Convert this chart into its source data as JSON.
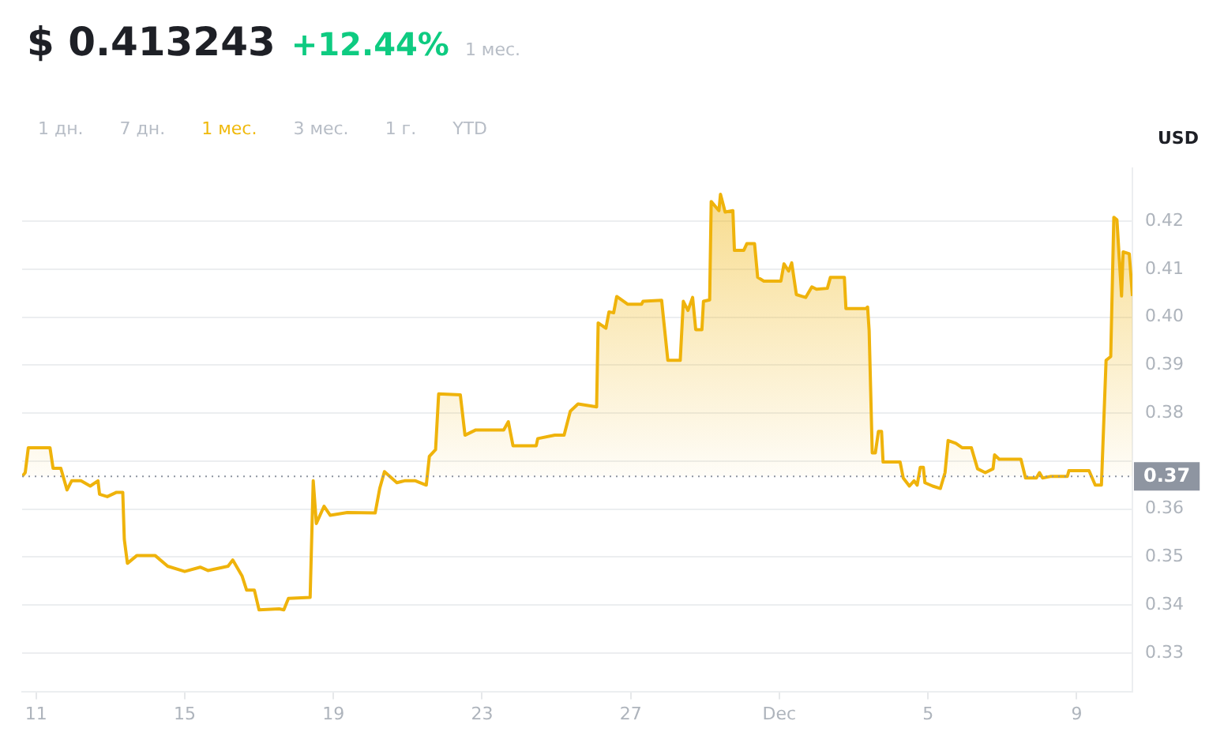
{
  "chart_data": {
    "type": "area",
    "title": "$ 0.413243",
    "subtitle": "+12.44%",
    "ylabel": "USD",
    "annotations": [
      "1 мес.",
      "1 дн.",
      "7 дн.",
      "1 мес.",
      "3 мес.",
      "1 г.",
      "YTD"
    ],
    "x": [
      "--11-10T15:00",
      "--11-10T17:00",
      "--11-10T19:00",
      "--11-11T09:00",
      "--11-11T11:00",
      "--11-11T16:00",
      "--11-11T20:00",
      "--11-11T23:00",
      "--11-12T05:00",
      "--11-12T11:00",
      "--11-12T16:00",
      "--11-12T17:00",
      "--11-12T22:00",
      "--11-13T04:00",
      "--11-13T08:00",
      "--11-13T09:00",
      "--11-13T11:00",
      "--11-13T17:00",
      "--11-14T05:00",
      "--11-14T13:00",
      "--11-15T00:00",
      "--11-15T10:00",
      "--11-15T15:00",
      "--11-16T04:00",
      "--11-16T07:00",
      "--11-16T13:00",
      "--11-16T16:00",
      "--11-16T21:00",
      "--11-17T00:00",
      "--11-17T13:00",
      "--11-17T16:00",
      "--11-17T19:00",
      "--11-18T09:00",
      "--11-18T11:00",
      "--11-18T13:00",
      "--11-18T18:00",
      "--11-18T22:00",
      "--11-19T09:00",
      "--11-20T03:00",
      "--11-20T06:00",
      "--11-20T09:00",
      "--11-20T17:00",
      "--11-20T22:00",
      "--11-21T05:00",
      "--11-21T12:00",
      "--11-21T14:00",
      "--11-21T18:00",
      "--11-21T20:00",
      "--11-22T10:00",
      "--11-22T13:00",
      "--11-22T20:00",
      "--11-23T14:00",
      "--11-23T17:00",
      "--11-23T20:00",
      "--11-24T11:00",
      "--11-24T12:00",
      "--11-24T23:00",
      "--11-25T05:00",
      "--11-25T09:00",
      "--11-25T14:00",
      "--11-26T02:00",
      "--11-26T03:00",
      "--11-26T08:00",
      "--11-26T10:00",
      "--11-26T13:00",
      "--11-26T15:00",
      "--11-26T22:00",
      "--11-27T07:00",
      "--11-27T08:00",
      "--11-27T20:00",
      "--11-27T21:00",
      "--11-28T00:00",
      "--11-28T08:00",
      "--11-28T10:00",
      "--11-28T13:00",
      "--11-28T16:00",
      "--11-28T18:00",
      "--11-28T22:00",
      "--11-28T23:00",
      "--11-29T03:00",
      "--11-29T04:00",
      "--11-29T09:00",
      "--11-29T10:00",
      "--11-29T13:00",
      "--11-29T18:00",
      "--11-29T19:00",
      "--11-30T01:00",
      "--11-30T03:00",
      "--11-30T08:00",
      "--11-30T10:00",
      "--11-30T14:00",
      "--12-01T01:00",
      "--12-01T03:00",
      "--12-01T06:00",
      "--12-01T08:00",
      "--12-01T11:00",
      "--12-01T17:00",
      "--12-01T21:00",
      "--12-02T00:00",
      "--12-02T07:00",
      "--12-02T09:00",
      "--12-02T18:00",
      "--12-02T19:00",
      "--12-03T08:00",
      "--12-03T09:00",
      "--12-03T10:00",
      "--12-03T12:00",
      "--12-03T14:00",
      "--12-03T16:00",
      "--12-03T18:00",
      "--12-03T19:00",
      "--12-04T06:00",
      "--12-04T08:00",
      "--12-04T12:00",
      "--12-04T15:00",
      "--12-04T17:00",
      "--12-04T19:00",
      "--12-04T21:00",
      "--12-04T22:00",
      "--12-05T03:00",
      "--12-05T08:00",
      "--12-05T11:00",
      "--12-05T13:00",
      "--12-05T18:00",
      "--12-05T22:00",
      "--12-06T04:00",
      "--12-06T08:00",
      "--12-06T13:00",
      "--12-06T18:00",
      "--12-06T19:00",
      "--12-06T22:00",
      "--12-07T12:00",
      "--12-07T15:00",
      "--12-07T22:00",
      "--12-08T00:00",
      "--12-08T02:00",
      "--12-08T07:00",
      "--12-08T18:00",
      "--12-08T19:00",
      "--12-09T08:00",
      "--12-09T12:00",
      "--12-09T16:00",
      "--12-09T19:00",
      "--12-09T22:00",
      "--12-10T00:00",
      "--12-10T02:00",
      "--12-10T05:00",
      "--12-10T06:00",
      "--12-10T10:00",
      "--12-10T12:00"
    ],
    "series": [
      {
        "color": "#efb30b",
        "values": [
          0.3668,
          0.3676,
          0.3728,
          0.3728,
          0.3685,
          0.3685,
          0.364,
          0.3659,
          0.3659,
          0.3648,
          0.3659,
          0.3631,
          0.3626,
          0.3635,
          0.3635,
          0.3537,
          0.3487,
          0.3503,
          0.3503,
          0.3481,
          0.347,
          0.3479,
          0.3472,
          0.3481,
          0.3494,
          0.3461,
          0.3431,
          0.3431,
          0.339,
          0.3392,
          0.339,
          0.3414,
          0.3416,
          0.3659,
          0.357,
          0.3606,
          0.3587,
          0.3593,
          0.3592,
          0.3644,
          0.3678,
          0.3655,
          0.3659,
          0.3659,
          0.365,
          0.371,
          0.3724,
          0.384,
          0.3838,
          0.3754,
          0.3765,
          0.3765,
          0.3782,
          0.3732,
          0.3732,
          0.3747,
          0.3754,
          0.3754,
          0.3804,
          0.3819,
          0.3813,
          0.3988,
          0.3977,
          0.4011,
          0.4009,
          0.4043,
          0.4027,
          0.4027,
          0.4033,
          0.4035,
          0.4003,
          0.391,
          0.391,
          0.4033,
          0.4014,
          0.4041,
          0.3974,
          0.3974,
          0.4033,
          0.4036,
          0.4241,
          0.4222,
          0.4256,
          0.4219,
          0.4222,
          0.4139,
          0.4139,
          0.4153,
          0.4153,
          0.4083,
          0.4075,
          0.4075,
          0.4111,
          0.4096,
          0.4113,
          0.4047,
          0.4041,
          0.4063,
          0.4058,
          0.406,
          0.4083,
          0.4083,
          0.4018,
          0.4018,
          0.4021,
          0.3972,
          0.3717,
          0.3717,
          0.3762,
          0.3762,
          0.3698,
          0.3698,
          0.3665,
          0.3648,
          0.3659,
          0.365,
          0.3687,
          0.3687,
          0.3655,
          0.3648,
          0.3643,
          0.3676,
          0.3743,
          0.3737,
          0.3728,
          0.3728,
          0.3684,
          0.3676,
          0.3684,
          0.3713,
          0.3704,
          0.3704,
          0.3665,
          0.3665,
          0.3676,
          0.3665,
          0.3668,
          0.3668,
          0.368,
          0.368,
          0.365,
          0.365,
          0.391,
          0.3918,
          0.4208,
          0.4203,
          0.4044,
          0.4136,
          0.4132,
          0.4044
        ]
      }
    ],
    "xlim": [
      "--11-10T15:00",
      "--12-10T12:00"
    ],
    "xticks": [
      {
        "value": "--11-11",
        "label": "11"
      },
      {
        "value": "--11-15",
        "label": "15"
      },
      {
        "value": "--11-19",
        "label": "19"
      },
      {
        "value": "--11-23",
        "label": "23"
      },
      {
        "value": "--11-27",
        "label": "27"
      },
      {
        "value": "--12-01",
        "label": "Dec"
      },
      {
        "value": "--12-05",
        "label": "5"
      },
      {
        "value": "--12-09",
        "label": "9"
      }
    ],
    "ylim": [
      0.322,
      0.431
    ],
    "yticks": [
      {
        "value": 0.33,
        "label": "0.33"
      },
      {
        "value": 0.34,
        "label": "0.34"
      },
      {
        "value": 0.35,
        "label": "0.35"
      },
      {
        "value": 0.36,
        "label": "0.36"
      },
      {
        "value": 0.37,
        "label": null
      },
      {
        "value": 0.38,
        "label": "0.38"
      },
      {
        "value": 0.39,
        "label": "0.39"
      },
      {
        "value": 0.4,
        "label": "0.40"
      },
      {
        "value": 0.41,
        "label": "0.41"
      },
      {
        "value": 0.42,
        "label": "0.42"
      }
    ],
    "ref_lines": [
      {
        "axis": "y",
        "value": 0.3668,
        "label": "0.37",
        "color": "#8e95a1",
        "line_style": "dotted"
      }
    ],
    "grid": "y",
    "legend": false,
    "marker": "none",
    "line_style": "solid"
  }
}
